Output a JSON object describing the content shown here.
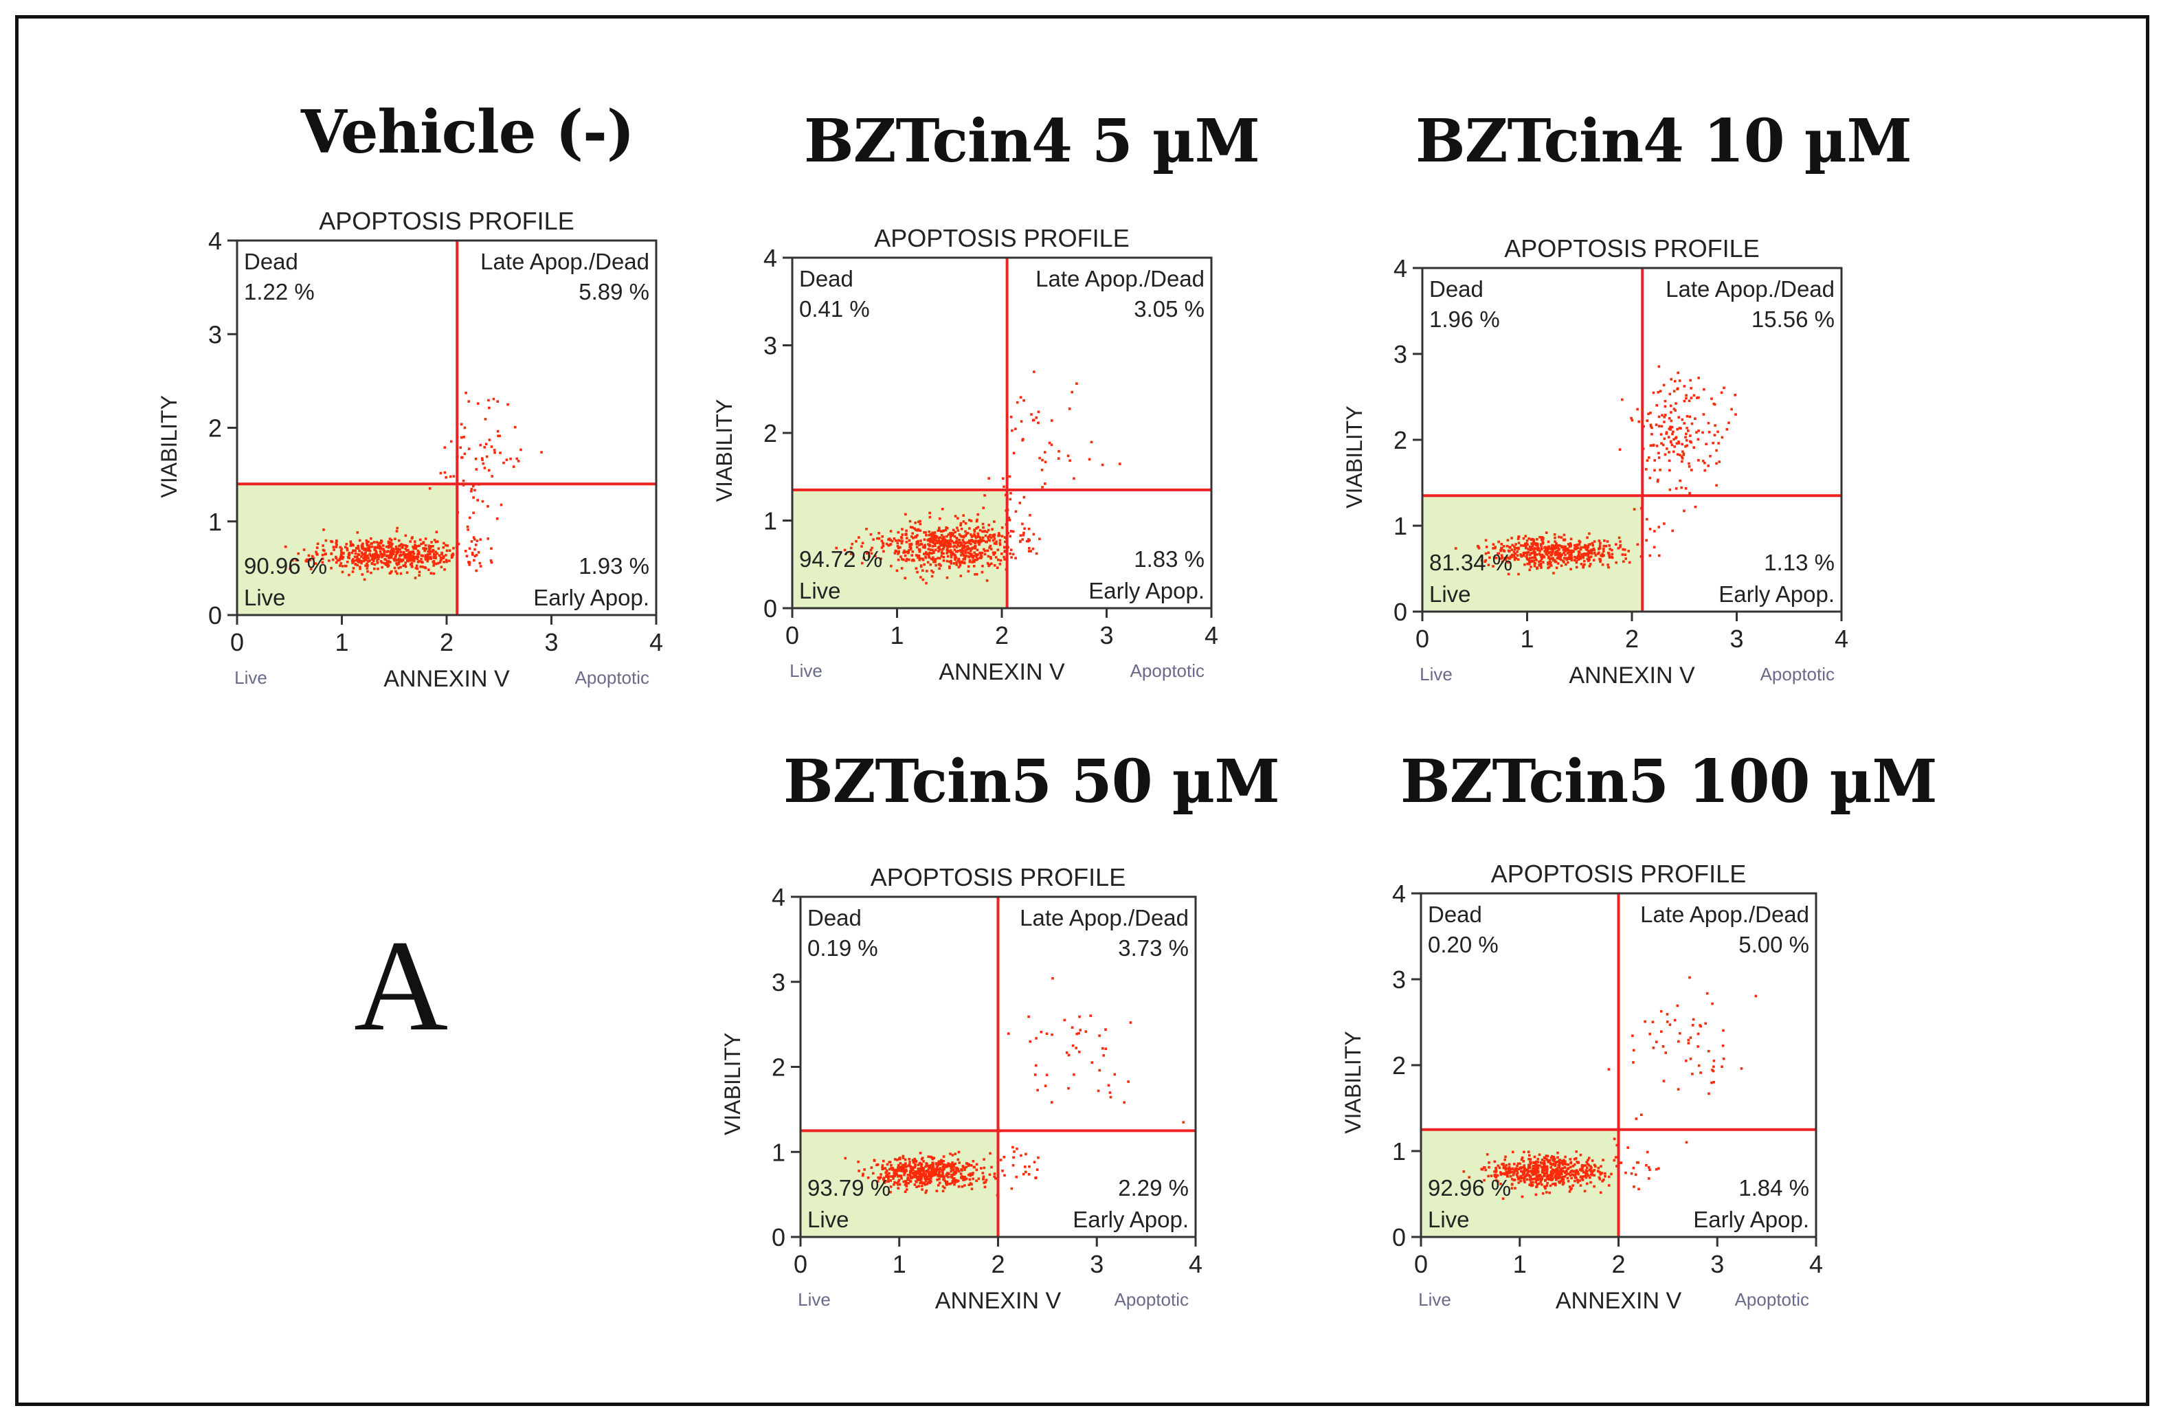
{
  "figure": {
    "panel_label": "A",
    "colors": {
      "live_region": "#e3f1c4",
      "quadrant_line": "#ee2222",
      "dots": "#ff2a0a",
      "axis": "#333333",
      "frame": "#111111"
    }
  },
  "chart_data": [
    {
      "type": "scatter",
      "title": "Vehicle (-)",
      "plot_title": "APOPTOSIS PROFILE",
      "xlabel": "ANNEXIN V",
      "ylabel": "VIABILITY",
      "xlim": [
        0,
        4
      ],
      "ylim": [
        0,
        4
      ],
      "xticks": [
        "0",
        "1",
        "2",
        "3",
        "4"
      ],
      "yticks": [
        "0",
        "1",
        "2",
        "3",
        "4"
      ],
      "x_left_note": "Live",
      "x_right_note": "Apoptotic",
      "gate": {
        "x": 2.1,
        "y": 1.4
      },
      "quadrants": {
        "dead": {
          "label": "Dead",
          "value": "1.22 %"
        },
        "late": {
          "label": "Late Apop./Dead",
          "value": "5.89 %"
        },
        "live": {
          "label": "Live",
          "value": "90.96 %"
        },
        "early": {
          "label": "Early Apop.",
          "value": "1.93 %"
        }
      },
      "clusters": [
        {
          "n": 560,
          "cx": 1.45,
          "cy": 0.65,
          "sx": 0.35,
          "sy": 0.09
        },
        {
          "n": 70,
          "cx": 2.35,
          "cy": 1.7,
          "sx": 0.18,
          "sy": 0.3
        },
        {
          "n": 18,
          "cx": 2.2,
          "cy": 0.9,
          "sx": 0.12,
          "sy": 0.25
        }
      ],
      "seed": 11
    },
    {
      "type": "scatter",
      "title": "BZTcin4 5 µM",
      "plot_title": "APOPTOSIS PROFILE",
      "xlabel": "ANNEXIN V",
      "ylabel": "VIABILITY",
      "xlim": [
        0,
        4
      ],
      "ylim": [
        0,
        4
      ],
      "xticks": [
        "0",
        "1",
        "2",
        "3",
        "4"
      ],
      "yticks": [
        "0",
        "1",
        "2",
        "3",
        "4"
      ],
      "x_left_note": "Live",
      "x_right_note": "Apoptotic",
      "gate": {
        "x": 2.05,
        "y": 1.35
      },
      "quadrants": {
        "dead": {
          "label": "Dead",
          "value": "0.41 %"
        },
        "late": {
          "label": "Late Apop./Dead",
          "value": "3.05 %"
        },
        "live": {
          "label": "Live",
          "value": "94.72 %"
        },
        "early": {
          "label": "Early Apop.",
          "value": "1.83 %"
        }
      },
      "clusters": [
        {
          "n": 620,
          "cx": 1.45,
          "cy": 0.7,
          "sx": 0.35,
          "sy": 0.14
        },
        {
          "n": 45,
          "cx": 2.4,
          "cy": 1.9,
          "sx": 0.25,
          "sy": 0.35
        },
        {
          "n": 20,
          "cx": 2.15,
          "cy": 0.9,
          "sx": 0.1,
          "sy": 0.25
        }
      ],
      "seed": 23
    },
    {
      "type": "scatter",
      "title": "BZTcin4 10 µM",
      "plot_title": "APOPTOSIS PROFILE",
      "xlabel": "ANNEXIN V",
      "ylabel": "VIABILITY",
      "xlim": [
        0,
        4
      ],
      "ylim": [
        0,
        4
      ],
      "xticks": [
        "0",
        "1",
        "2",
        "3",
        "4"
      ],
      "yticks": [
        "0",
        "1",
        "2",
        "3",
        "4"
      ],
      "x_left_note": "Live",
      "x_right_note": "Apoptotic",
      "gate": {
        "x": 2.1,
        "y": 1.35
      },
      "quadrants": {
        "dead": {
          "label": "Dead",
          "value": "1.96 %"
        },
        "late": {
          "label": "Late Apop./Dead",
          "value": "15.56 %"
        },
        "live": {
          "label": "Live",
          "value": "81.34 %"
        },
        "early": {
          "label": "Early Apop.",
          "value": "1.13 %"
        }
      },
      "clusters": [
        {
          "n": 480,
          "cx": 1.25,
          "cy": 0.7,
          "sx": 0.3,
          "sy": 0.09
        },
        {
          "n": 180,
          "cx": 2.45,
          "cy": 2.05,
          "sx": 0.22,
          "sy": 0.35
        },
        {
          "n": 15,
          "cx": 2.2,
          "cy": 0.9,
          "sx": 0.1,
          "sy": 0.2
        }
      ],
      "seed": 37
    },
    {
      "type": "scatter",
      "title": "BZTcin5 50 µM",
      "plot_title": "APOPTOSIS PROFILE",
      "xlabel": "ANNEXIN V",
      "ylabel": "VIABILITY",
      "xlim": [
        0,
        4
      ],
      "ylim": [
        0,
        4
      ],
      "xticks": [
        "0",
        "1",
        "2",
        "3",
        "4"
      ],
      "yticks": [
        "0",
        "1",
        "2",
        "3",
        "4"
      ],
      "x_left_note": "Live",
      "x_right_note": "Apoptotic",
      "gate": {
        "x": 2.0,
        "y": 1.25
      },
      "quadrants": {
        "dead": {
          "label": "Dead",
          "value": "0.19 %"
        },
        "late": {
          "label": "Late Apop./Dead",
          "value": "3.73 %"
        },
        "live": {
          "label": "Live",
          "value": "93.79 %"
        },
        "early": {
          "label": "Early Apop.",
          "value": "2.29 %"
        }
      },
      "clusters": [
        {
          "n": 520,
          "cx": 1.3,
          "cy": 0.75,
          "sx": 0.28,
          "sy": 0.09
        },
        {
          "n": 45,
          "cx": 2.8,
          "cy": 2.1,
          "sx": 0.35,
          "sy": 0.4
        },
        {
          "n": 25,
          "cx": 2.2,
          "cy": 0.9,
          "sx": 0.15,
          "sy": 0.2
        }
      ],
      "seed": 51
    },
    {
      "type": "scatter",
      "title": "BZTcin5 100 µM",
      "plot_title": "APOPTOSIS PROFILE",
      "xlabel": "ANNEXIN V",
      "ylabel": "VIABILITY",
      "xlim": [
        0,
        4
      ],
      "ylim": [
        0,
        4
      ],
      "xticks": [
        "0",
        "1",
        "2",
        "3",
        "4"
      ],
      "yticks": [
        "0",
        "1",
        "2",
        "3",
        "4"
      ],
      "x_left_note": "Live",
      "x_right_note": "Apoptotic",
      "gate": {
        "x": 2.0,
        "y": 1.25
      },
      "quadrants": {
        "dead": {
          "label": "Dead",
          "value": "0.20 %"
        },
        "late": {
          "label": "Late Apop./Dead",
          "value": "5.00 %"
        },
        "live": {
          "label": "Live",
          "value": "92.96 %"
        },
        "early": {
          "label": "Early Apop.",
          "value": "1.84 %"
        }
      },
      "clusters": [
        {
          "n": 520,
          "cx": 1.25,
          "cy": 0.75,
          "sx": 0.28,
          "sy": 0.09
        },
        {
          "n": 55,
          "cx": 2.7,
          "cy": 2.2,
          "sx": 0.3,
          "sy": 0.35
        },
        {
          "n": 20,
          "cx": 2.2,
          "cy": 0.85,
          "sx": 0.15,
          "sy": 0.2
        }
      ],
      "seed": 67
    }
  ]
}
